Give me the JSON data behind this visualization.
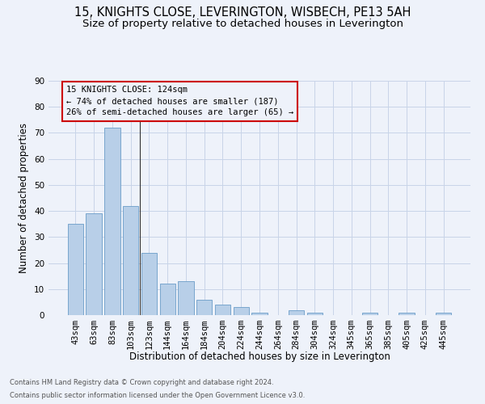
{
  "title": "15, KNIGHTS CLOSE, LEVERINGTON, WISBECH, PE13 5AH",
  "subtitle": "Size of property relative to detached houses in Leverington",
  "xlabel": "Distribution of detached houses by size in Leverington",
  "ylabel": "Number of detached properties",
  "categories": [
    "43sqm",
    "63sqm",
    "83sqm",
    "103sqm",
    "123sqm",
    "144sqm",
    "164sqm",
    "184sqm",
    "204sqm",
    "224sqm",
    "244sqm",
    "264sqm",
    "284sqm",
    "304sqm",
    "324sqm",
    "345sqm",
    "365sqm",
    "385sqm",
    "405sqm",
    "425sqm",
    "445sqm"
  ],
  "values": [
    35,
    39,
    72,
    42,
    24,
    12,
    13,
    6,
    4,
    3,
    1,
    0,
    2,
    1,
    0,
    0,
    1,
    0,
    1,
    0,
    1
  ],
  "bar_color": "#b8cfe8",
  "bar_edge_color": "#6a9cc8",
  "grid_color": "#c8d4e8",
  "annotation_text_line1": "15 KNIGHTS CLOSE: 124sqm",
  "annotation_text_line2": "← 74% of detached houses are smaller (187)",
  "annotation_text_line3": "26% of semi-detached houses are larger (65) →",
  "annotation_box_color": "#cc0000",
  "ylim": [
    0,
    90
  ],
  "yticks": [
    0,
    10,
    20,
    30,
    40,
    50,
    60,
    70,
    80,
    90
  ],
  "footer_line1": "Contains HM Land Registry data © Crown copyright and database right 2024.",
  "footer_line2": "Contains public sector information licensed under the Open Government Licence v3.0.",
  "title_fontsize": 10.5,
  "subtitle_fontsize": 9.5,
  "tick_fontsize": 7.5,
  "ylabel_fontsize": 8.5,
  "xlabel_fontsize": 8.5,
  "annotation_fontsize": 7.5,
  "footer_fontsize": 6.0,
  "background_color": "#eef2fa"
}
